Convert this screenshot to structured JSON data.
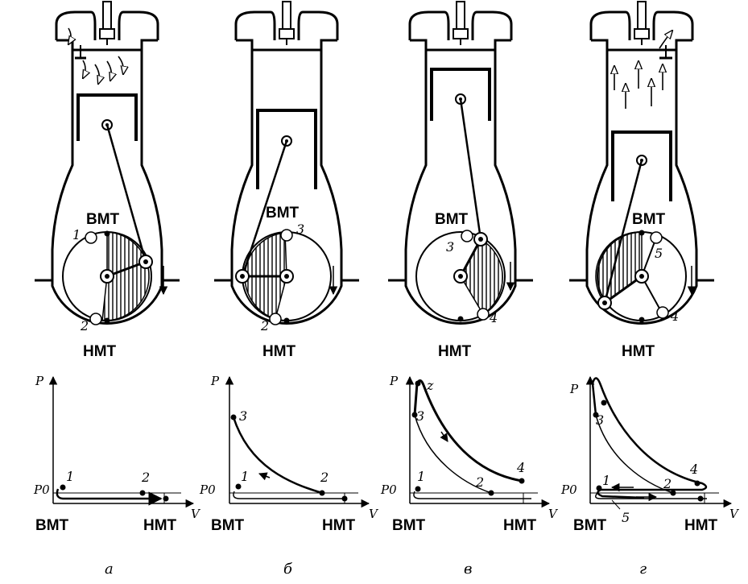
{
  "panels": [
    {
      "caption": "а",
      "engine": {
        "top_label": "ВМТ",
        "bottom_label": "НМТ",
        "points": [
          "1",
          "2"
        ]
      },
      "diagram": {
        "p_label": "P",
        "v_label": "V",
        "p0_label": "P0",
        "x_left": "ВМТ",
        "x_right": "НМТ",
        "points": [
          "1",
          "2"
        ]
      }
    },
    {
      "caption": "б",
      "engine": {
        "top_label": "ВМТ",
        "bottom_label": "НМТ",
        "points": [
          "3",
          "2"
        ]
      },
      "diagram": {
        "p_label": "P",
        "v_label": "V",
        "p0_label": "P0",
        "x_left": "ВМТ",
        "x_right": "НМТ",
        "points": [
          "3",
          "1",
          "2"
        ]
      }
    },
    {
      "caption": "в",
      "engine": {
        "top_label": "ВМТ",
        "bottom_label": "НМТ",
        "points": [
          "3",
          "4"
        ]
      },
      "diagram": {
        "p_label": "P",
        "v_label": "V",
        "p0_label": "P0",
        "x_left": "ВМТ",
        "x_right": "НМТ",
        "points": [
          "z",
          "3",
          "1",
          "2",
          "4"
        ]
      }
    },
    {
      "caption": "г",
      "engine": {
        "top_label": "ВМТ",
        "bottom_label": "НМТ",
        "points": [
          "5",
          "4"
        ]
      },
      "diagram": {
        "p_label": "P",
        "v_label": "V",
        "p0_label": "P0",
        "x_left": "ВМТ",
        "x_right": "НМТ",
        "points": [
          "3",
          "1",
          "2",
          "4",
          "5"
        ]
      }
    }
  ]
}
